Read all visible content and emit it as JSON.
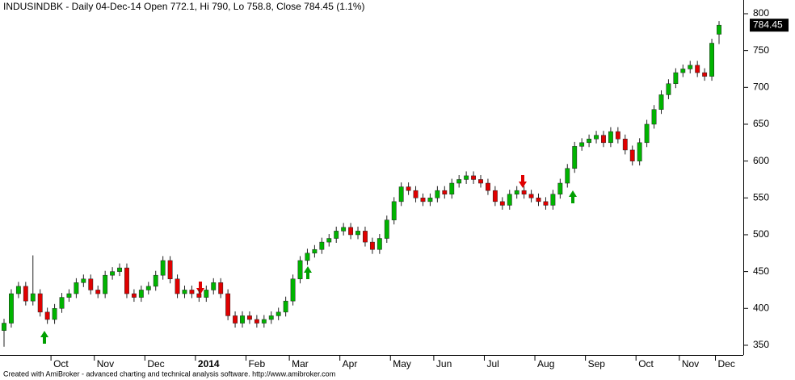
{
  "chart_data": {
    "type": "candlestick",
    "title": "INDUSINDBK - Daily 04-Dec-14 Open 772.1, Hi 790, Lo 758.8, Close 784.45 (1.1%)",
    "footer": "Created with AmiBroker - advanced charting and technical analysis software. http://www.amibroker.com",
    "categories": [
      null,
      null,
      null,
      null,
      null,
      null,
      null,
      "Oct",
      null,
      null,
      null,
      null,
      null,
      "Nov",
      null,
      null,
      null,
      null,
      null,
      null,
      "Dec",
      null,
      null,
      null,
      null,
      null,
      null,
      "2014",
      null,
      null,
      null,
      null,
      null,
      null,
      "Feb",
      null,
      null,
      null,
      null,
      null,
      "Mar",
      null,
      null,
      null,
      null,
      null,
      null,
      "Apr",
      null,
      null,
      null,
      null,
      null,
      null,
      "May",
      null,
      null,
      null,
      null,
      null,
      "Jun",
      null,
      null,
      null,
      null,
      null,
      null,
      "Jul",
      null,
      null,
      null,
      null,
      null,
      null,
      "Aug",
      null,
      null,
      null,
      null,
      null,
      null,
      "Sep",
      null,
      null,
      null,
      null,
      null,
      null,
      "Oct",
      null,
      null,
      null,
      null,
      null,
      "Nov",
      null,
      null,
      null,
      null,
      "Dec"
    ],
    "open": [
      370,
      380,
      420,
      430,
      410,
      420,
      395,
      385,
      400,
      415,
      420,
      435,
      440,
      425,
      420,
      445,
      450,
      455,
      420,
      415,
      425,
      430,
      445,
      465,
      440,
      420,
      425,
      420,
      415,
      425,
      435,
      420,
      390,
      380,
      390,
      385,
      380,
      385,
      390,
      395,
      410,
      440,
      465,
      475,
      480,
      490,
      495,
      505,
      510,
      500,
      505,
      490,
      480,
      495,
      520,
      545,
      565,
      560,
      550,
      545,
      550,
      560,
      555,
      570,
      575,
      580,
      575,
      570,
      560,
      545,
      540,
      555,
      560,
      555,
      550,
      545,
      540,
      555,
      570,
      590,
      620,
      625,
      630,
      635,
      625,
      640,
      630,
      615,
      600,
      625,
      650,
      670,
      690,
      705,
      720,
      725,
      730,
      720,
      715,
      772.1
    ],
    "high": [
      386,
      426,
      436,
      436,
      472,
      426,
      401,
      406,
      421,
      426,
      441,
      446,
      446,
      431,
      451,
      456,
      461,
      461,
      426,
      431,
      436,
      451,
      471,
      471,
      446,
      431,
      431,
      426,
      431,
      441,
      441,
      426,
      396,
      396,
      396,
      391,
      391,
      396,
      401,
      416,
      446,
      471,
      481,
      486,
      496,
      501,
      511,
      516,
      516,
      511,
      511,
      496,
      501,
      526,
      551,
      571,
      571,
      566,
      556,
      556,
      566,
      566,
      576,
      581,
      586,
      586,
      581,
      576,
      566,
      551,
      561,
      566,
      566,
      561,
      556,
      551,
      561,
      576,
      596,
      626,
      631,
      636,
      641,
      641,
      646,
      646,
      636,
      621,
      631,
      656,
      676,
      696,
      711,
      726,
      731,
      736,
      736,
      726,
      766,
      790
    ],
    "low": [
      348,
      374,
      414,
      404,
      404,
      389,
      379,
      379,
      394,
      409,
      414,
      429,
      419,
      414,
      414,
      439,
      444,
      414,
      409,
      409,
      419,
      424,
      439,
      434,
      414,
      414,
      414,
      409,
      409,
      419,
      414,
      384,
      374,
      374,
      379,
      374,
      374,
      379,
      384,
      389,
      404,
      434,
      459,
      469,
      474,
      484,
      489,
      499,
      494,
      494,
      484,
      474,
      474,
      489,
      514,
      539,
      554,
      544,
      539,
      539,
      544,
      549,
      549,
      564,
      569,
      569,
      564,
      554,
      539,
      534,
      534,
      549,
      549,
      544,
      539,
      534,
      534,
      549,
      564,
      584,
      614,
      619,
      624,
      619,
      619,
      624,
      609,
      594,
      594,
      619,
      644,
      664,
      684,
      699,
      714,
      719,
      714,
      709,
      709,
      758.8
    ],
    "close": [
      380,
      420,
      430,
      410,
      420,
      395,
      385,
      400,
      415,
      420,
      435,
      440,
      425,
      420,
      445,
      450,
      455,
      420,
      415,
      425,
      430,
      445,
      465,
      440,
      420,
      425,
      420,
      415,
      425,
      435,
      420,
      390,
      380,
      390,
      385,
      380,
      385,
      390,
      395,
      410,
      440,
      465,
      475,
      480,
      490,
      495,
      505,
      510,
      500,
      505,
      490,
      480,
      495,
      520,
      545,
      565,
      560,
      550,
      545,
      550,
      560,
      555,
      570,
      575,
      580,
      575,
      570,
      560,
      545,
      540,
      555,
      560,
      555,
      550,
      545,
      540,
      555,
      570,
      590,
      620,
      625,
      630,
      635,
      625,
      640,
      630,
      615,
      600,
      625,
      650,
      670,
      690,
      705,
      720,
      725,
      730,
      720,
      715,
      760,
      784.45
    ],
    "up_color": "#00b400",
    "down_color": "#e00000",
    "wick_color": "#222222",
    "ylim": [
      336.8,
      818.6
    ],
    "yticks": [
      350,
      400,
      450,
      500,
      550,
      600,
      650,
      700,
      750,
      800
    ]
  }
}
